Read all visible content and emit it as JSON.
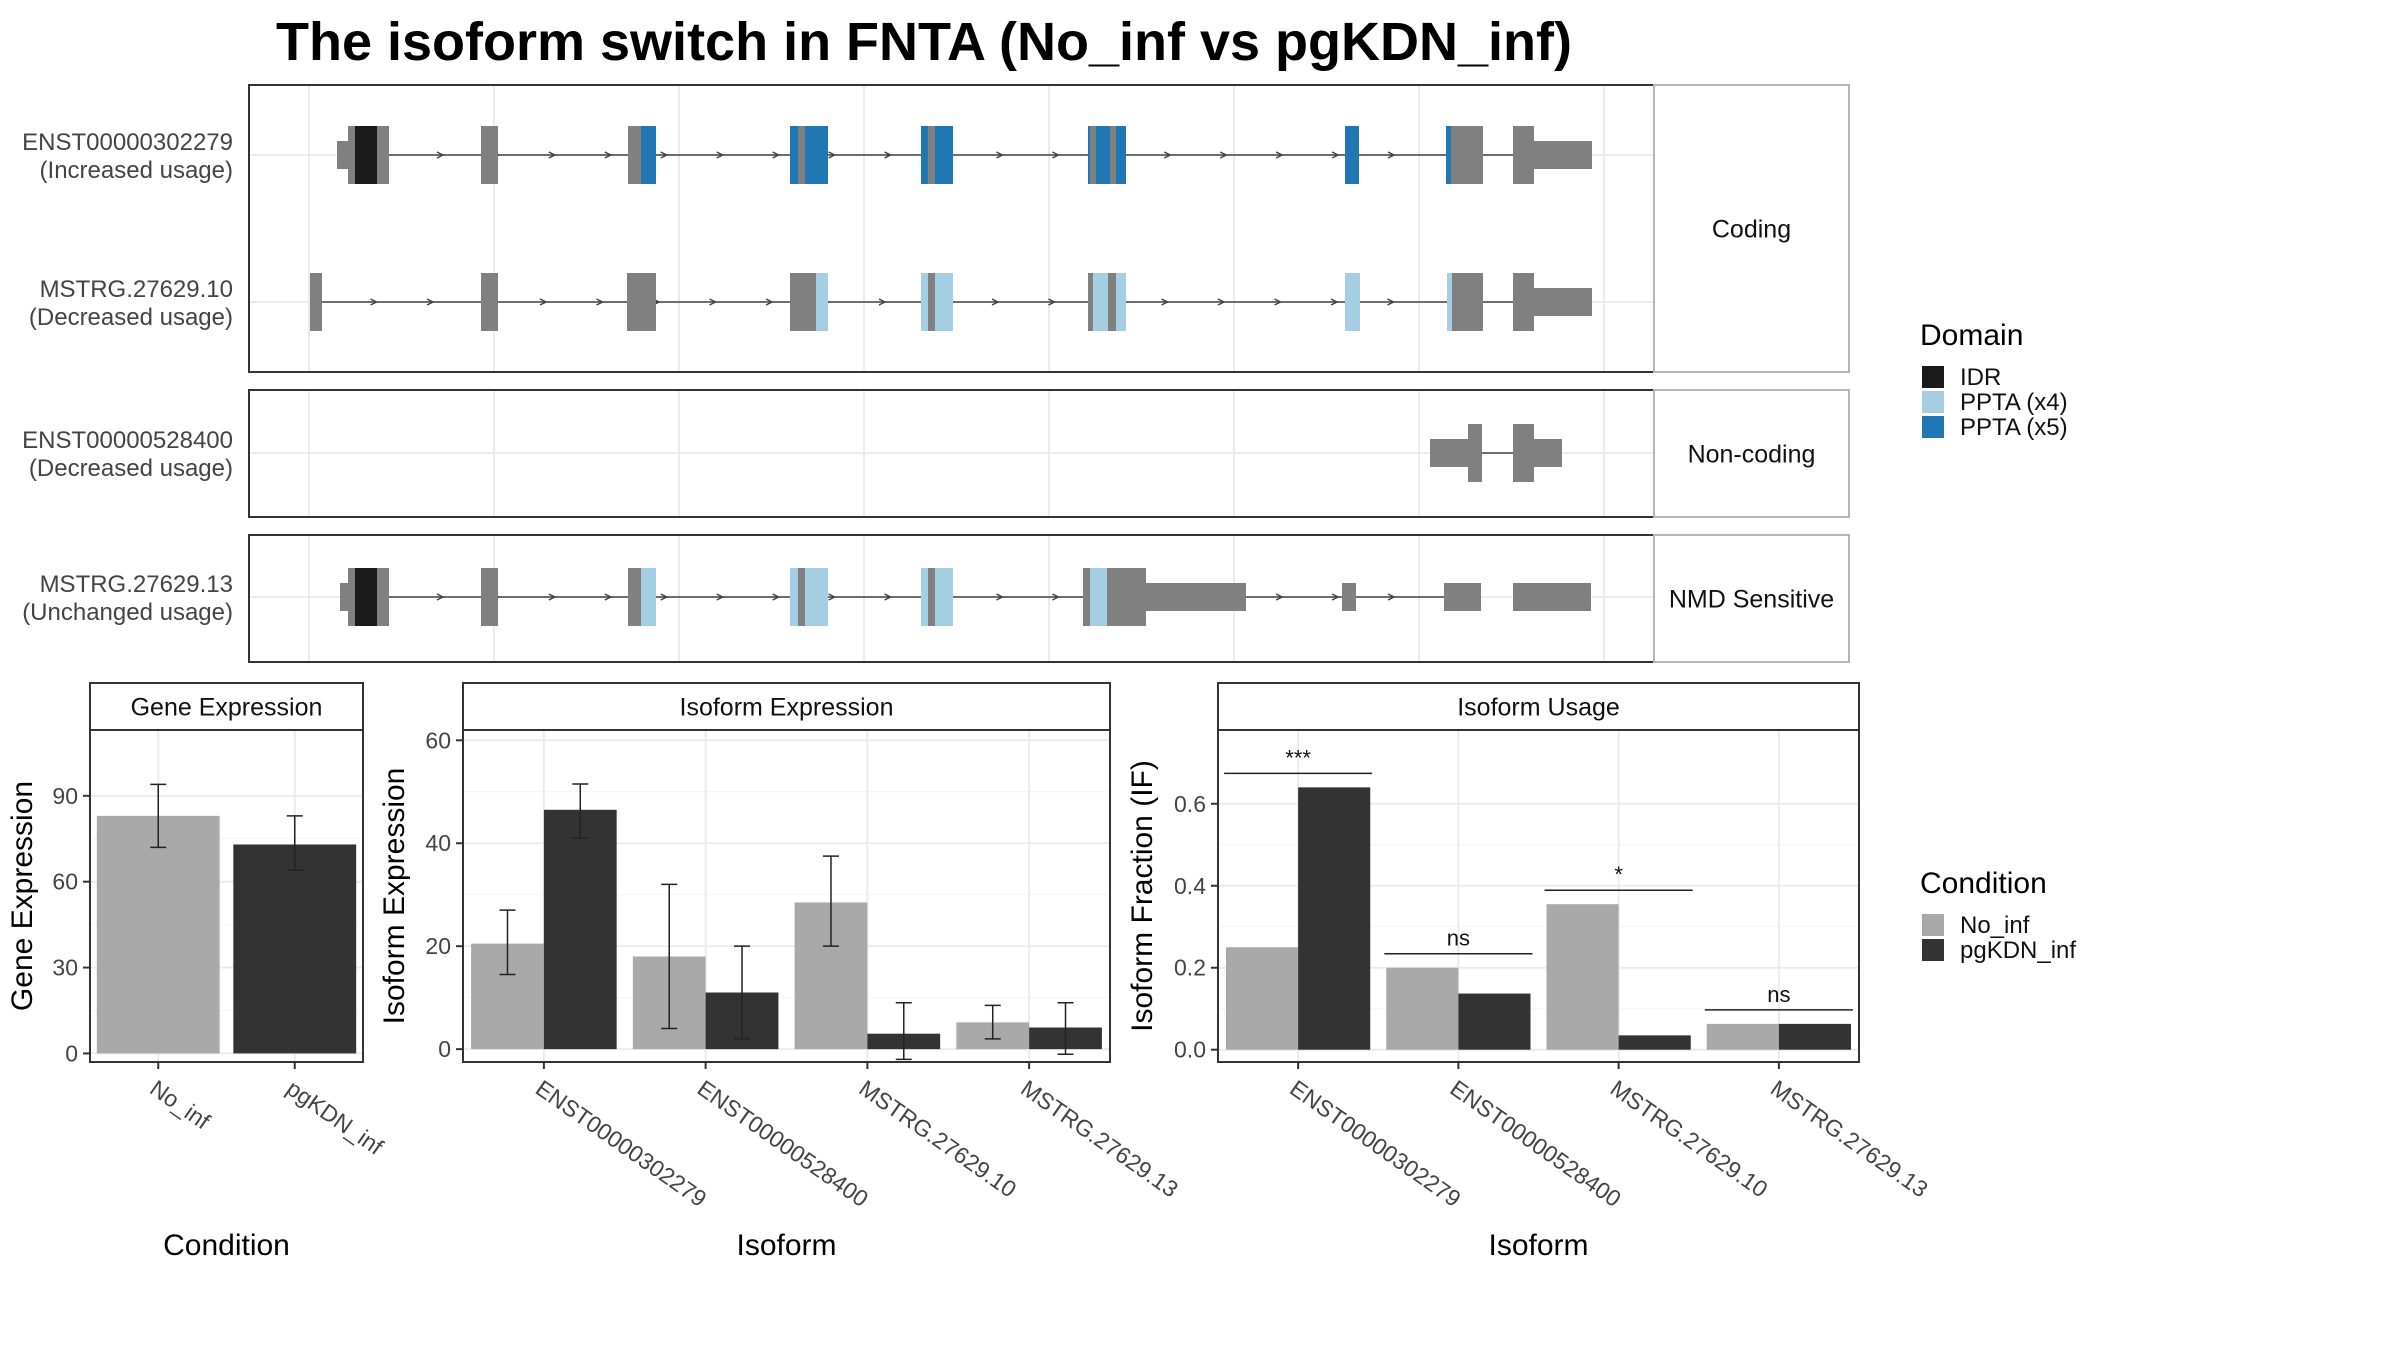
{
  "title": "The isoform switch in FNTA (No_inf vs pgKDN_inf)",
  "colors": {
    "exon": "#808080",
    "IDR": "#1a1a1a",
    "PPTA (x4)": "#a6cee3",
    "PPTA (x5)": "#1f78b4",
    "No_inf": "#a9a9a9",
    "pgKDN_inf": "#333333"
  },
  "transcripts": [
    {
      "id": "ENST00000302279",
      "usage": "(Increased usage)",
      "group": "Coding"
    },
    {
      "id": "MSTRG.27629.10",
      "usage": "(Decreased usage)",
      "group": "Coding"
    },
    {
      "id": "ENST00000528400",
      "usage": "(Decreased usage)",
      "group": "Non-coding"
    },
    {
      "id": "MSTRG.27629.13",
      "usage": "(Unchanged usage)",
      "group": "NMD Sensitive"
    }
  ],
  "groups": [
    "Coding",
    "Non-coding",
    "NMD Sensitive"
  ],
  "domain_legend": {
    "title": "Domain",
    "items": [
      "IDR",
      "PPTA (x4)",
      "PPTA (x5)"
    ]
  },
  "condition_legend": {
    "title": "Condition",
    "items": [
      "No_inf",
      "pgKDN_inf"
    ]
  },
  "chart_data": [
    {
      "type": "bar",
      "panel": "Gene Expression",
      "categories": [
        "No_inf",
        "pgKDN_inf"
      ],
      "values": [
        83,
        73
      ],
      "errors": [
        [
          72,
          94
        ],
        [
          64,
          83
        ]
      ],
      "xlabel": "Condition",
      "ylabel": "Gene Expression",
      "ylim": [
        -3,
        113
      ],
      "yticks": [
        0,
        30,
        60,
        90
      ]
    },
    {
      "type": "bar",
      "panel": "Isoform Expression",
      "categories": [
        "ENST00000302279",
        "ENST00000528400",
        "MSTRG.27629.10",
        "MSTRG.27629.13"
      ],
      "series": [
        {
          "name": "No_inf",
          "values": [
            20.5,
            18,
            28.5,
            5.2
          ],
          "errors": [
            [
              14.5,
              27
            ],
            [
              4,
              32
            ],
            [
              20,
              37.5
            ],
            [
              2,
              8.5
            ]
          ]
        },
        {
          "name": "pgKDN_inf",
          "values": [
            46.5,
            11,
            3,
            4.2
          ],
          "errors": [
            [
              41,
              51.5
            ],
            [
              2,
              20
            ],
            [
              -2,
              9
            ],
            [
              -1,
              9
            ]
          ]
        }
      ],
      "xlabel": "Isoform",
      "ylabel": "Isoform Expression",
      "ylim": [
        -2.5,
        62
      ],
      "yticks": [
        0,
        20,
        40,
        60
      ]
    },
    {
      "type": "bar",
      "panel": "Isoform Usage",
      "categories": [
        "ENST00000302279",
        "ENST00000528400",
        "MSTRG.27629.10",
        "MSTRG.27629.13"
      ],
      "series": [
        {
          "name": "No_inf",
          "values": [
            0.25,
            0.2,
            0.355,
            0.063
          ]
        },
        {
          "name": "pgKDN_inf",
          "values": [
            0.64,
            0.137,
            0.035,
            0.063
          ]
        }
      ],
      "significance": [
        "***",
        "ns",
        "*",
        "ns"
      ],
      "xlabel": "Isoform",
      "ylabel": "Isoform Fraction (IF)",
      "ylim": [
        -0.03,
        0.78
      ],
      "yticks": [
        0.0,
        0.2,
        0.4,
        0.6
      ],
      "ytick_labels": [
        "0.0",
        "0.2",
        "0.4",
        "0.6"
      ]
    }
  ]
}
